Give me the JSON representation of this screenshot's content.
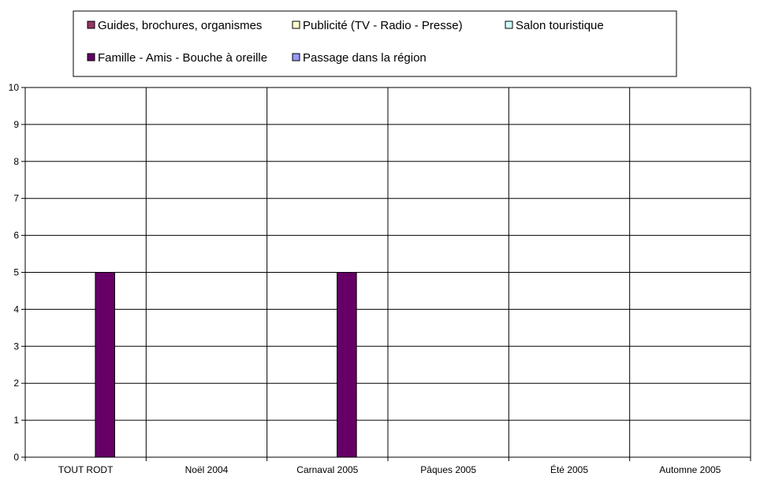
{
  "chart_data": {
    "type": "bar",
    "title": "",
    "xlabel": "",
    "ylabel": "",
    "categories": [
      "TOUT RODT",
      "Noël 2004",
      "Carnaval 2005",
      "Pâques 2005",
      "Été 2005",
      "Automne 2005"
    ],
    "ylim": [
      0,
      10
    ],
    "yticks": [
      0,
      1,
      2,
      3,
      4,
      5,
      6,
      7,
      8,
      9,
      10
    ],
    "grid": true,
    "legend_position": "top",
    "series": [
      {
        "name": "Guides, brochures, organismes",
        "color": "#993366",
        "values": [
          0,
          0,
          0,
          0,
          0,
          0
        ]
      },
      {
        "name": "Publicité (TV - Radio - Presse)",
        "color": "#FFFFCC",
        "values": [
          0,
          0,
          0,
          0,
          0,
          0
        ]
      },
      {
        "name": "Salon touristique",
        "color": "#CCFFFF",
        "values": [
          0,
          0,
          0,
          0,
          0,
          0
        ]
      },
      {
        "name": "Famille - Amis - Bouche à oreille",
        "color": "#660066",
        "values": [
          5,
          0,
          5,
          0,
          0,
          0
        ]
      },
      {
        "name": "Passage dans la région",
        "color": "#9999FF",
        "values": [
          0,
          0,
          0,
          0,
          0,
          0
        ]
      }
    ]
  }
}
